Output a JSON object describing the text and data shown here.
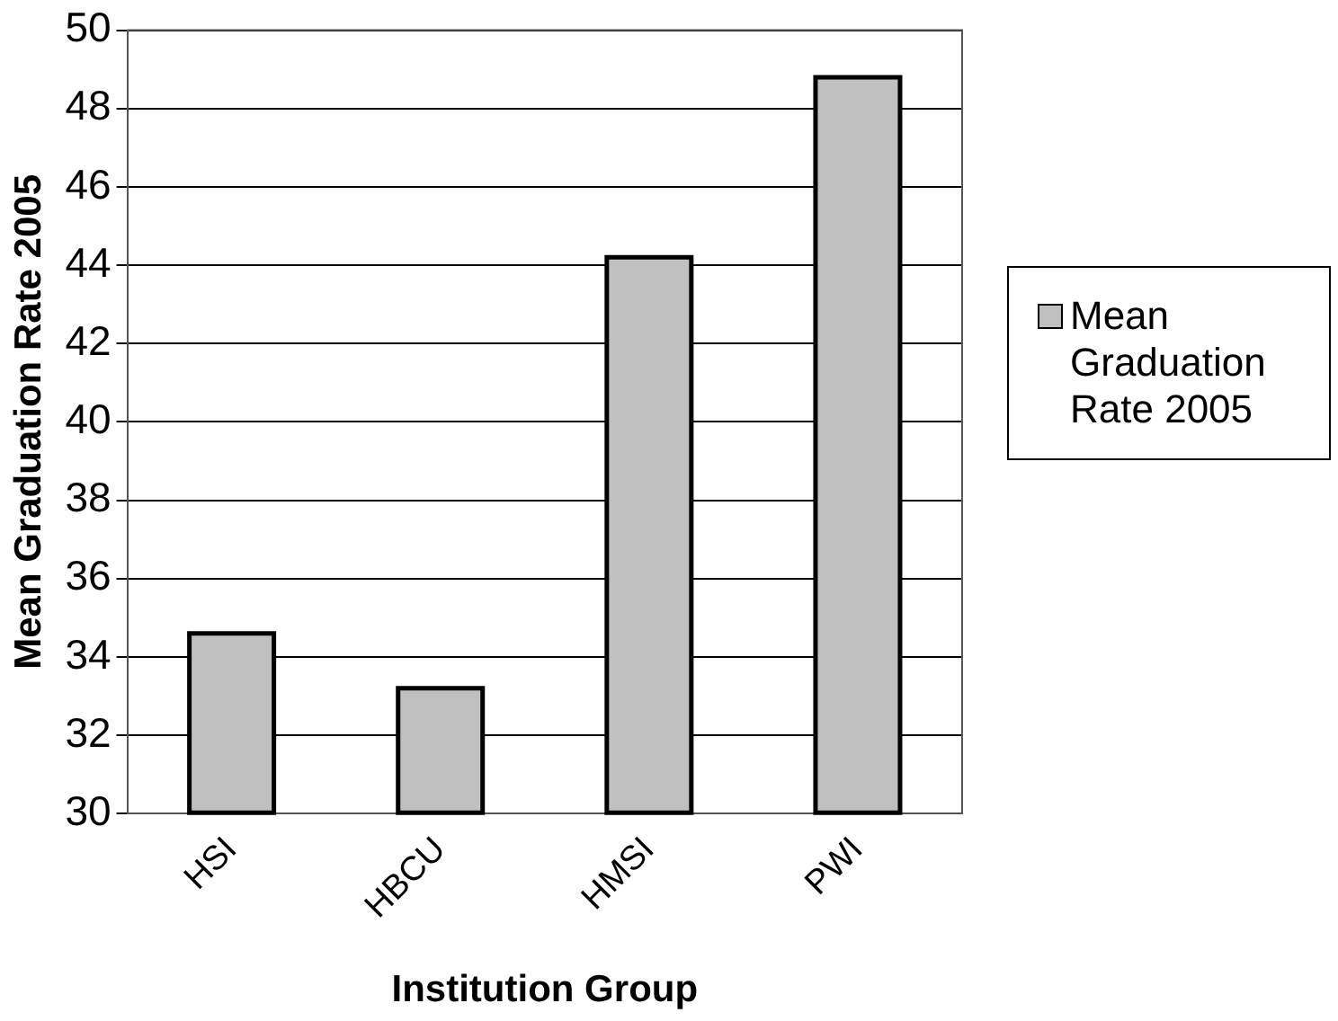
{
  "chart_data": {
    "type": "bar",
    "xlabel": "Institution Group",
    "ylabel": "Mean Graduation Rate 2005",
    "categories": [
      "HSI",
      "HBCU",
      "HMSI",
      "PWI"
    ],
    "series": [
      {
        "name": "Mean Graduation Rate 2005",
        "color": "#c0c0c0",
        "values": [
          34.6,
          33.2,
          44.2,
          48.8
        ]
      }
    ],
    "ylim": [
      30,
      50
    ],
    "yticks": [
      30,
      32,
      34,
      36,
      38,
      40,
      42,
      44,
      46,
      48,
      50
    ],
    "grid": "y",
    "legend": "right"
  }
}
